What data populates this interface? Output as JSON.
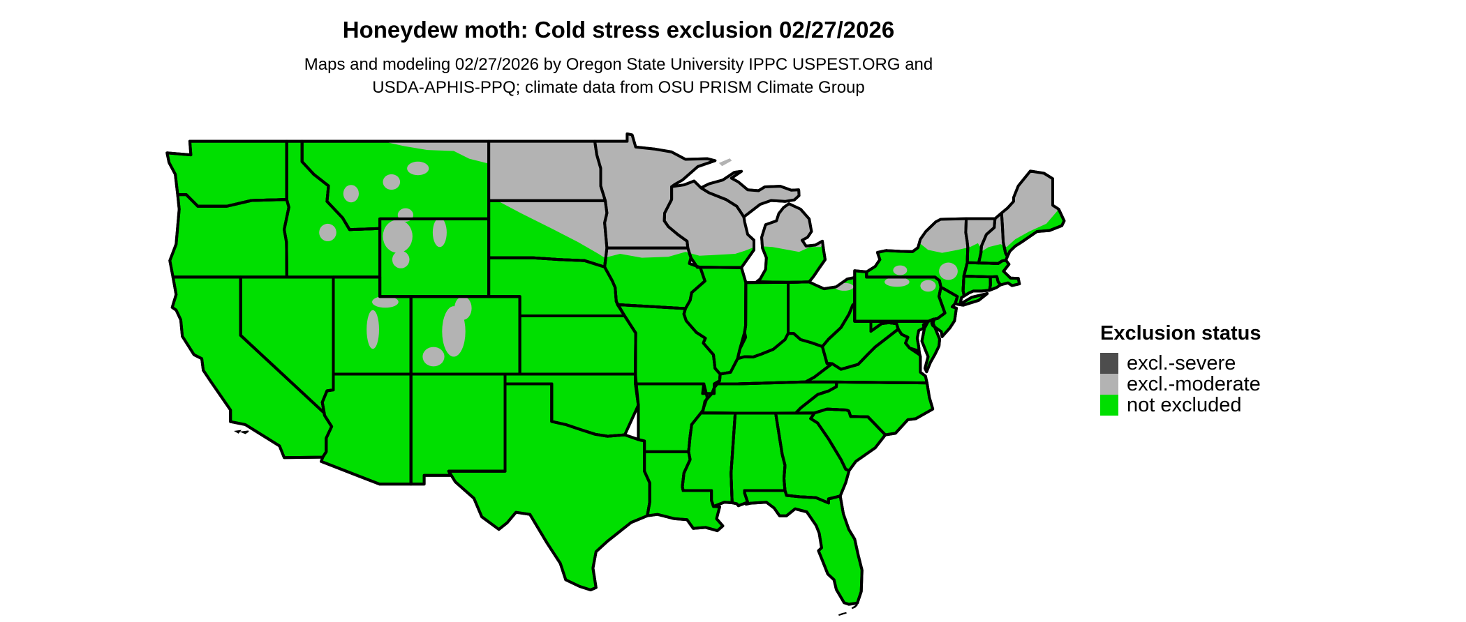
{
  "header": {
    "title": "Honeydew moth: Cold stress exclusion 02/27/2026",
    "subtitle_line1": "Maps and modeling 02/27/2026 by Oregon State University IPPC USPEST.ORG and",
    "subtitle_line2": "USDA-APHIS-PPQ; climate data from OSU PRISM Climate Group"
  },
  "legend": {
    "title": "Exclusion status",
    "items": [
      {
        "label": "excl.-severe",
        "color": "#4D4D4D",
        "status": "excluded-severe"
      },
      {
        "label": "excl.-moderate",
        "color": "#B3B3B3",
        "status": "excluded-moderate"
      },
      {
        "label": "not excluded",
        "color": "#00DF00",
        "status": "not-excluded"
      }
    ]
  },
  "colors": {
    "background": "#FFFFFF",
    "water": "#FFFFFF",
    "border": "#000000",
    "not_excluded": "#00DF00",
    "excl_moderate": "#B3B3B3",
    "excl_severe": "#4D4D4D"
  },
  "map": {
    "region": "contiguous United States",
    "species": "Honeydew moth",
    "model": "Cold stress exclusion",
    "date": "02/27/2026",
    "excluded_severe_areas": [],
    "excluded_moderate_areas": [
      "northern Montana fringe and northeast Montana corner",
      "North Dakota (entire state)",
      "northern and eastern South Dakota",
      "Minnesota (entire state)",
      "northern Iowa fringe",
      "most of Wisconsin (except southern strip)",
      "Michigan Upper Peninsula and northern Lower Michigan",
      "Isle Royale",
      "Adirondacks and northern New York",
      "Catskills patches in New York",
      "Vermont and New Hampshire (except southern edges)",
      "inland Maine (coastal strip not excluded)",
      "mountain patches in Wyoming, Colorado, Utah, Montana, Idaho",
      "small patches in northern Pennsylvania and along Lake Erie in Ohio"
    ],
    "not_excluded_areas": "remainder of the contiguous United States"
  }
}
